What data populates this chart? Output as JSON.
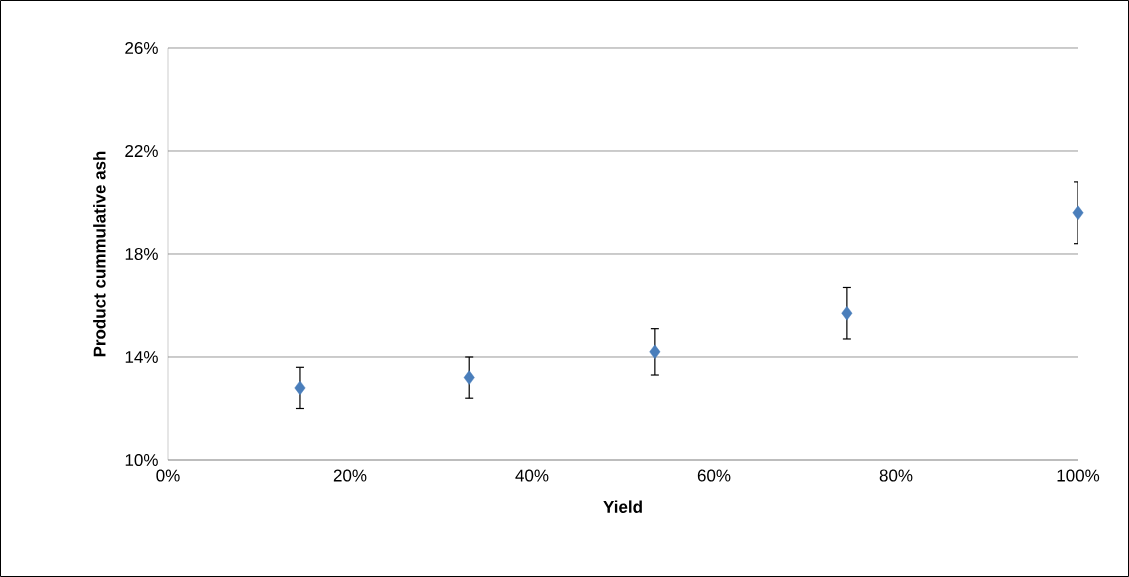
{
  "chart_data": {
    "type": "scatter",
    "xlabel": "Yield",
    "ylabel": "Product cummulative ash",
    "x": [
      14.5,
      33.1,
      53.5,
      74.6,
      100
    ],
    "series": [
      {
        "color": "#4a7ebb",
        "values": [
          12.8,
          13.2,
          14.2,
          15.7,
          19.6
        ],
        "errors": [
          0.8,
          0.8,
          0.9,
          1.0,
          1.2
        ]
      }
    ],
    "xlim": [
      0,
      100
    ],
    "ylim": [
      10,
      26
    ],
    "xticks": [
      {
        "value": 0,
        "label": "0%"
      },
      {
        "value": 20,
        "label": "20%"
      },
      {
        "value": 40,
        "label": "40%"
      },
      {
        "value": 60,
        "label": "60%"
      },
      {
        "value": 80,
        "label": "80%"
      },
      {
        "value": 100,
        "label": "100%"
      }
    ],
    "yticks": [
      {
        "value": 10,
        "label": "10%"
      },
      {
        "value": 14,
        "label": "14%"
      },
      {
        "value": 18,
        "label": "18%"
      },
      {
        "value": 22,
        "label": "22%"
      },
      {
        "value": 26,
        "label": "26%"
      }
    ],
    "grid": "y",
    "marker": "diamond"
  }
}
